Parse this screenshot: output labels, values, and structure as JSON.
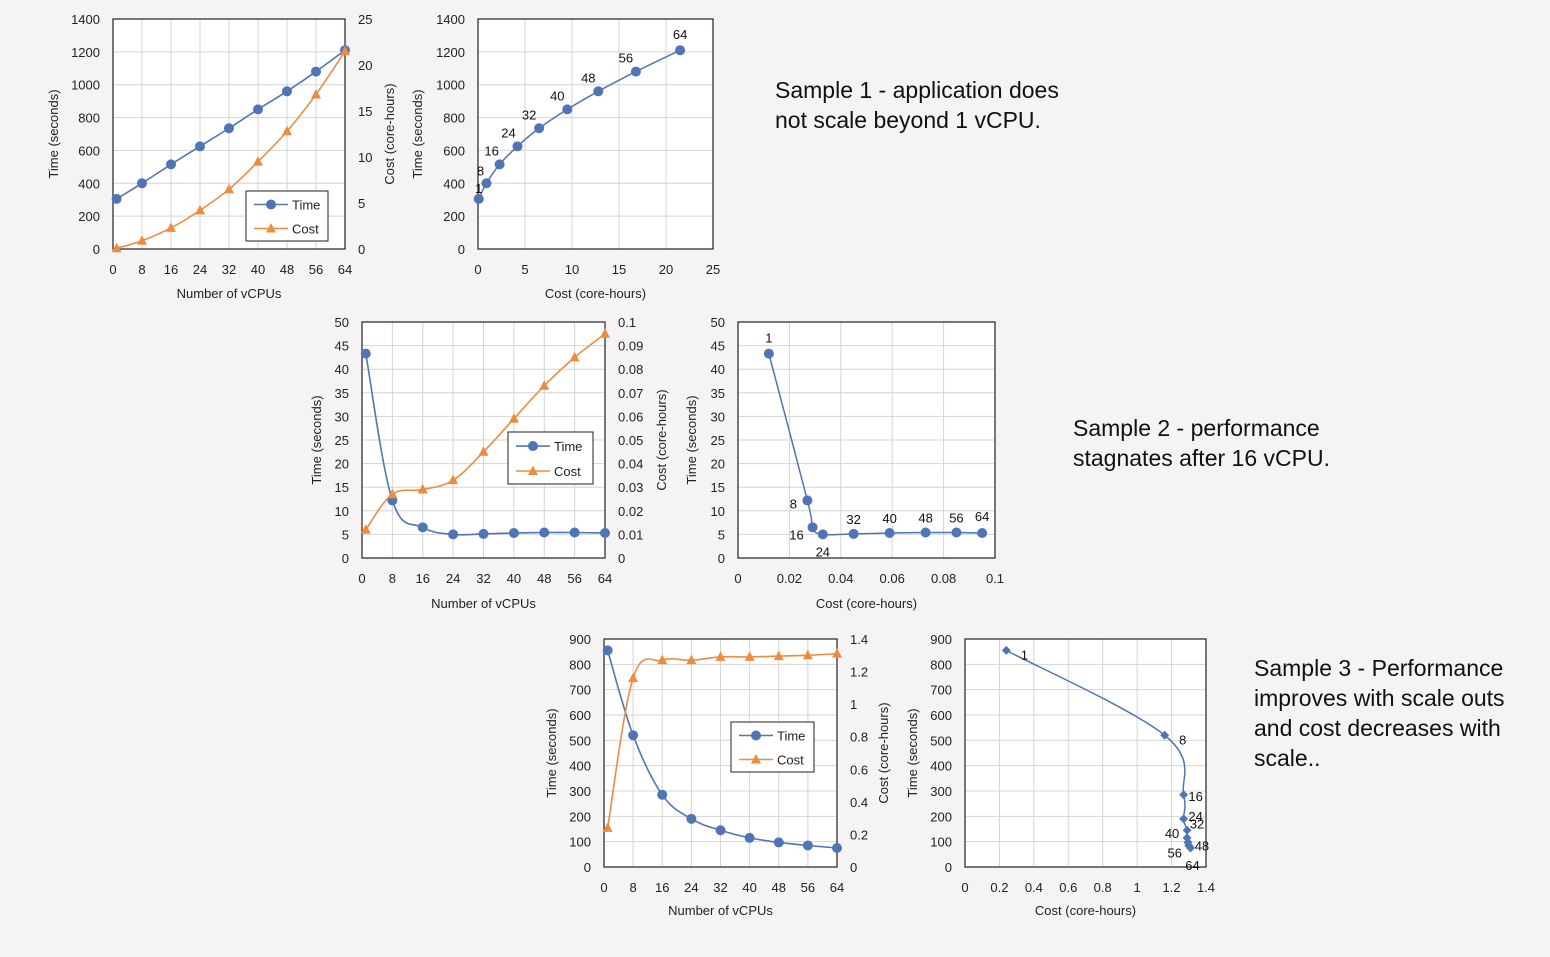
{
  "notes": [
    "Sample 1 - application does not scale beyond 1 vCPU.",
    "Sample 2 - performance stagnates after 16 vCPU.",
    "Sample 3 - Performance improves with scale outs and cost decreases with scale.."
  ],
  "colors": {
    "time": "#4f75b5",
    "cost": "#ed8c3f",
    "grid": "#d4d4d4"
  },
  "chart_data": [
    {
      "type": "line",
      "xlabel": "Number of vCPUs",
      "ylabel": "Time (seconds)",
      "y2label": "Cost (core-hours)",
      "x": [
        1,
        8,
        16,
        24,
        32,
        40,
        48,
        56,
        64
      ],
      "xticks": [
        0,
        8,
        16,
        24,
        32,
        40,
        48,
        56,
        64
      ],
      "xlim": [
        0,
        64
      ],
      "ylim": [
        0,
        1400
      ],
      "yticks": [
        0,
        200,
        400,
        600,
        800,
        1000,
        1200,
        1400
      ],
      "y2lim": [
        0,
        25
      ],
      "y2ticks": [
        0,
        5,
        10,
        15,
        20,
        25
      ],
      "series": [
        {
          "name": "Time",
          "axis": "left",
          "marker": "circle",
          "values": [
            305,
            400,
            515,
            625,
            735,
            850,
            960,
            1080,
            1210
          ]
        },
        {
          "name": "Cost",
          "axis": "right",
          "marker": "triangle",
          "values": [
            0.08,
            0.9,
            2.3,
            4.2,
            6.5,
            9.5,
            12.8,
            16.8,
            21.5
          ]
        }
      ],
      "legend": "bottom-right"
    },
    {
      "type": "scatter",
      "xlabel": "Cost (core-hours)",
      "ylabel": "Time (seconds)",
      "xlim": [
        0,
        25
      ],
      "xticks": [
        0,
        5,
        10,
        15,
        20,
        25
      ],
      "ylim": [
        0,
        1400
      ],
      "yticks": [
        0,
        200,
        400,
        600,
        800,
        1000,
        1200,
        1400
      ],
      "marker": "circle",
      "points": [
        {
          "x": 0.08,
          "y": 305,
          "label": "1"
        },
        {
          "x": 0.9,
          "y": 400,
          "label": "8"
        },
        {
          "x": 2.3,
          "y": 515,
          "label": "16"
        },
        {
          "x": 4.2,
          "y": 625,
          "label": "24"
        },
        {
          "x": 6.5,
          "y": 735,
          "label": "32"
        },
        {
          "x": 9.5,
          "y": 850,
          "label": "40"
        },
        {
          "x": 12.8,
          "y": 960,
          "label": "48"
        },
        {
          "x": 16.8,
          "y": 1080,
          "label": "56"
        },
        {
          "x": 21.5,
          "y": 1210,
          "label": "64"
        }
      ]
    },
    {
      "type": "line",
      "xlabel": "Number of vCPUs",
      "ylabel": "Time (seconds)",
      "y2label": "Cost (core-hours)",
      "x": [
        1,
        8,
        16,
        24,
        32,
        40,
        48,
        56,
        64
      ],
      "xticks": [
        0,
        8,
        16,
        24,
        32,
        40,
        48,
        56,
        64
      ],
      "xlim": [
        0,
        64
      ],
      "ylim": [
        0,
        50
      ],
      "yticks": [
        0,
        5,
        10,
        15,
        20,
        25,
        30,
        35,
        40,
        45,
        50
      ],
      "y2lim": [
        0,
        0.1
      ],
      "y2ticks": [
        "0",
        "0.01",
        "0.02",
        "0.03",
        "0.04",
        "0.05",
        "0.06",
        "0.07",
        "0.08",
        "0.09",
        "0.1"
      ],
      "series": [
        {
          "name": "Time",
          "axis": "left",
          "marker": "circle",
          "values": [
            43.3,
            12.2,
            6.5,
            5.0,
            5.1,
            5.3,
            5.4,
            5.4,
            5.3
          ]
        },
        {
          "name": "Cost",
          "axis": "right",
          "marker": "triangle",
          "values": [
            0.012,
            0.027,
            0.029,
            0.033,
            0.045,
            0.059,
            0.073,
            0.085,
            0.095
          ]
        }
      ],
      "legend": "center-right"
    },
    {
      "type": "scatter",
      "xlabel": "Cost (core-hours)",
      "ylabel": "Time (seconds)",
      "xlim": [
        0,
        0.1
      ],
      "xticks": [
        "0",
        "0.02",
        "0.04",
        "0.06",
        "0.08",
        "0.1"
      ],
      "ylim": [
        0,
        50
      ],
      "yticks": [
        0,
        5,
        10,
        15,
        20,
        25,
        30,
        35,
        40,
        45,
        50
      ],
      "marker": "circle",
      "points": [
        {
          "x": 0.012,
          "y": 43.3,
          "label": "1"
        },
        {
          "x": 0.027,
          "y": 12.2,
          "label": "8"
        },
        {
          "x": 0.029,
          "y": 6.5,
          "label": "16"
        },
        {
          "x": 0.033,
          "y": 5.0,
          "label": "24"
        },
        {
          "x": 0.045,
          "y": 5.1,
          "label": "32"
        },
        {
          "x": 0.059,
          "y": 5.3,
          "label": "40"
        },
        {
          "x": 0.073,
          "y": 5.4,
          "label": "48"
        },
        {
          "x": 0.085,
          "y": 5.4,
          "label": "56"
        },
        {
          "x": 0.095,
          "y": 5.3,
          "label": "64"
        }
      ]
    },
    {
      "type": "line",
      "xlabel": "Number of vCPUs",
      "ylabel": "Time (seconds)",
      "y2label": "Cost (core-hours)",
      "x": [
        1,
        8,
        16,
        24,
        32,
        40,
        48,
        56,
        64
      ],
      "xticks": [
        0,
        8,
        16,
        24,
        32,
        40,
        48,
        56,
        64
      ],
      "xlim": [
        0,
        64
      ],
      "ylim": [
        0,
        900
      ],
      "yticks": [
        0,
        100,
        200,
        300,
        400,
        500,
        600,
        700,
        800,
        900
      ],
      "y2lim": [
        0,
        1.4
      ],
      "y2ticks": [
        "0",
        "0.2",
        "0.4",
        "0.6",
        "0.8",
        "1",
        "1.2",
        "1.4"
      ],
      "series": [
        {
          "name": "Time",
          "axis": "left",
          "marker": "circle",
          "values": [
            855,
            520,
            285,
            190,
            145,
            115,
            97,
            85,
            75
          ]
        },
        {
          "name": "Cost",
          "axis": "right",
          "marker": "triangle",
          "values": [
            0.24,
            1.16,
            1.27,
            1.27,
            1.29,
            1.29,
            1.295,
            1.3,
            1.31
          ]
        }
      ],
      "legend": "center-right"
    },
    {
      "type": "scatter",
      "xlabel": "Cost (core-hours)",
      "ylabel": "Time (seconds)",
      "xlim": [
        0,
        1.4
      ],
      "xticks": [
        "0",
        "0.2",
        "0.4",
        "0.6",
        "0.8",
        "1",
        "1.2",
        "1.4"
      ],
      "ylim": [
        0,
        900
      ],
      "yticks": [
        0,
        100,
        200,
        300,
        400,
        500,
        600,
        700,
        800,
        900
      ],
      "marker": "diamond",
      "points": [
        {
          "x": 0.24,
          "y": 855,
          "label": "1"
        },
        {
          "x": 1.16,
          "y": 520,
          "label": "8"
        },
        {
          "x": 1.27,
          "y": 285,
          "label": "16"
        },
        {
          "x": 1.27,
          "y": 190,
          "label": "24"
        },
        {
          "x": 1.29,
          "y": 145,
          "label": "32"
        },
        {
          "x": 1.29,
          "y": 115,
          "label": "40"
        },
        {
          "x": 1.295,
          "y": 97,
          "label": "48"
        },
        {
          "x": 1.3,
          "y": 85,
          "label": "56"
        },
        {
          "x": 1.31,
          "y": 75,
          "label": "64"
        }
      ]
    }
  ]
}
